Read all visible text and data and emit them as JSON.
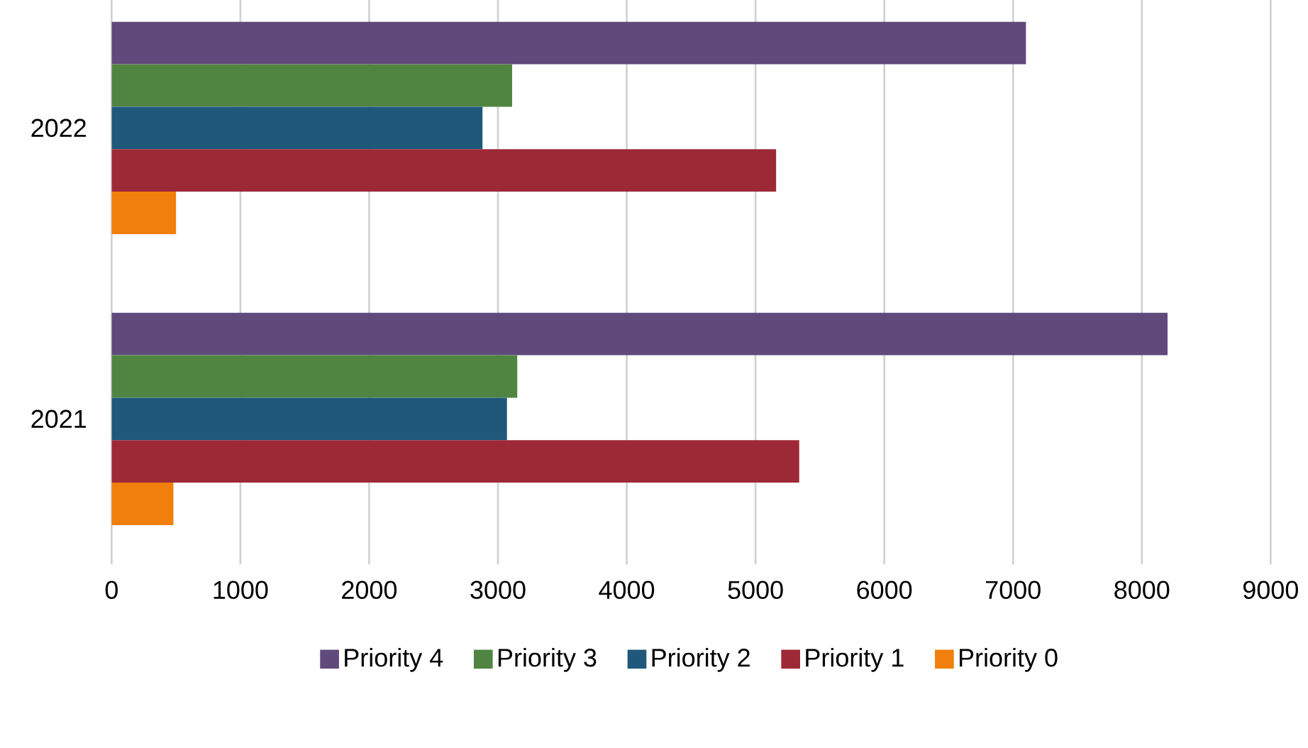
{
  "chart_data": {
    "type": "bar",
    "orientation": "horizontal",
    "categories": [
      "2022",
      "2021"
    ],
    "series": [
      {
        "name": "Priority 4",
        "color": "#604a7b",
        "values": [
          7100,
          8200
        ]
      },
      {
        "name": "Priority 3",
        "color": "#508541",
        "values": [
          3110,
          3150
        ]
      },
      {
        "name": "Priority 2",
        "color": "#1f587b",
        "values": [
          2880,
          3070
        ]
      },
      {
        "name": "Priority 1",
        "color": "#9e2936",
        "values": [
          5160,
          5340
        ]
      },
      {
        "name": "Priority 0",
        "color": "#f07f0b",
        "values": [
          500,
          480
        ]
      }
    ],
    "xlim": [
      0,
      9000
    ],
    "xticks": [
      0,
      1000,
      2000,
      3000,
      4000,
      5000,
      6000,
      7000,
      8000,
      9000
    ],
    "grid": "x",
    "legend": "bottom"
  }
}
